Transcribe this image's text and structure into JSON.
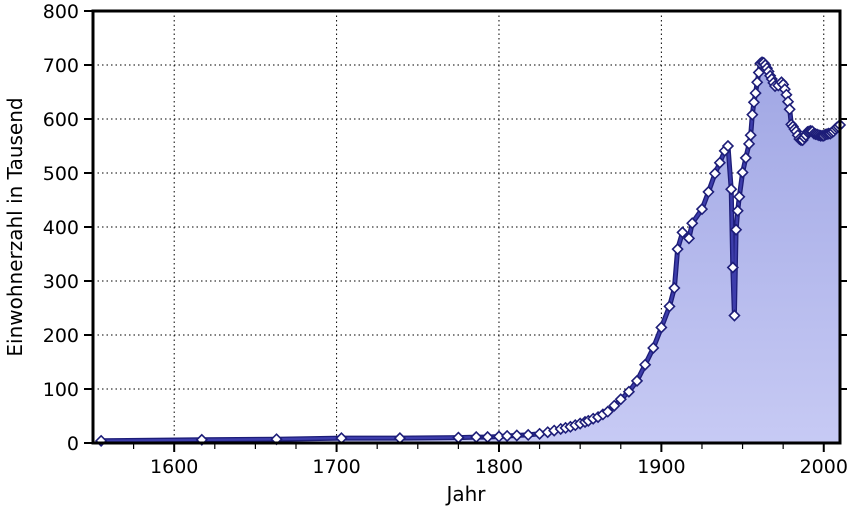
{
  "figure": {
    "background": "#ffffff"
  },
  "chart_data": {
    "type": "area",
    "title": "",
    "xlabel": "Jahr",
    "ylabel": "Einwohnerzahl in Tausend",
    "xlim": [
      1550,
      2010
    ],
    "ylim": [
      0,
      800
    ],
    "x_ticks": [
      1600,
      1700,
      1800,
      1900,
      2000
    ],
    "x_minor_tick_step": 25,
    "y_ticks": [
      0,
      100,
      200,
      300,
      400,
      500,
      600,
      700,
      800
    ],
    "grid": "dotted-major-both-axes",
    "legend_position": "none",
    "style": {
      "line_color": "#3d3dab",
      "line_edge_color": "#1d1d78",
      "marker": "diamond",
      "marker_fill": "#ffffff",
      "marker_stroke": "#1d1d78",
      "fill_gradient_top": "#9ba2e2",
      "fill_gradient_bottom": "#c7caf4",
      "grid_color": "#000000",
      "axis_color": "#000000",
      "text_color": "#000000"
    },
    "series": [
      {
        "name": "Einwohnerzahl",
        "points": [
          [
            1555,
            4
          ],
          [
            1617,
            6
          ],
          [
            1663,
            7
          ],
          [
            1703,
            9
          ],
          [
            1739,
            9
          ],
          [
            1775,
            10
          ],
          [
            1786,
            11
          ],
          [
            1793,
            11
          ],
          [
            1800,
            12
          ],
          [
            1805,
            13
          ],
          [
            1811,
            14
          ],
          [
            1818,
            15
          ],
          [
            1825,
            17
          ],
          [
            1830,
            20
          ],
          [
            1834,
            23
          ],
          [
            1838,
            26
          ],
          [
            1841,
            28
          ],
          [
            1844,
            30
          ],
          [
            1847,
            33
          ],
          [
            1850,
            36
          ],
          [
            1853,
            39
          ],
          [
            1855,
            41
          ],
          [
            1858,
            45
          ],
          [
            1861,
            48
          ],
          [
            1864,
            53
          ],
          [
            1867,
            58
          ],
          [
            1871,
            69
          ],
          [
            1875,
            81
          ],
          [
            1880,
            95
          ],
          [
            1885,
            115
          ],
          [
            1890,
            145
          ],
          [
            1895,
            176
          ],
          [
            1900,
            214
          ],
          [
            1905,
            253
          ],
          [
            1908,
            287
          ],
          [
            1910,
            359
          ],
          [
            1913,
            390
          ],
          [
            1917,
            379
          ],
          [
            1919,
            407
          ],
          [
            1925,
            433
          ],
          [
            1929,
            465
          ],
          [
            1933,
            499
          ],
          [
            1936,
            519
          ],
          [
            1939,
            541
          ],
          [
            1941,
            550
          ],
          [
            1943,
            470
          ],
          [
            1944,
            325
          ],
          [
            1945,
            236
          ],
          [
            1946,
            395
          ],
          [
            1947,
            430
          ],
          [
            1948,
            456
          ],
          [
            1950,
            501
          ],
          [
            1952,
            528
          ],
          [
            1954,
            554
          ],
          [
            1955,
            570
          ],
          [
            1956,
            608
          ],
          [
            1957,
            631
          ],
          [
            1958,
            648
          ],
          [
            1959,
            668
          ],
          [
            1960,
            686
          ],
          [
            1961,
            703
          ],
          [
            1962,
            705
          ],
          [
            1963,
            704
          ],
          [
            1964,
            700
          ],
          [
            1965,
            694
          ],
          [
            1966,
            688
          ],
          [
            1967,
            680
          ],
          [
            1968,
            674
          ],
          [
            1969,
            667
          ],
          [
            1970,
            661
          ],
          [
            1972,
            662
          ],
          [
            1974,
            668
          ],
          [
            1975,
            664
          ],
          [
            1976,
            655
          ],
          [
            1977,
            645
          ],
          [
            1978,
            632
          ],
          [
            1979,
            618
          ],
          [
            1980,
            590
          ],
          [
            1981,
            586
          ],
          [
            1982,
            581
          ],
          [
            1983,
            577
          ],
          [
            1984,
            570
          ],
          [
            1985,
            563
          ],
          [
            1986,
            561
          ],
          [
            1987,
            561
          ],
          [
            1988,
            566
          ],
          [
            1989,
            570
          ],
          [
            1990,
            576
          ],
          [
            1991,
            577
          ],
          [
            1992,
            578
          ],
          [
            1993,
            577
          ],
          [
            1994,
            573
          ],
          [
            1995,
            572
          ],
          [
            1996,
            571
          ],
          [
            1997,
            570
          ],
          [
            1998,
            569
          ],
          [
            1999,
            569
          ],
          [
            2000,
            569
          ],
          [
            2001,
            571
          ],
          [
            2002,
            572
          ],
          [
            2003,
            573
          ],
          [
            2004,
            573
          ],
          [
            2005,
            575
          ],
          [
            2006,
            577
          ],
          [
            2007,
            581
          ],
          [
            2008,
            584
          ],
          [
            2009,
            586
          ],
          [
            2010,
            589
          ]
        ]
      }
    ]
  }
}
